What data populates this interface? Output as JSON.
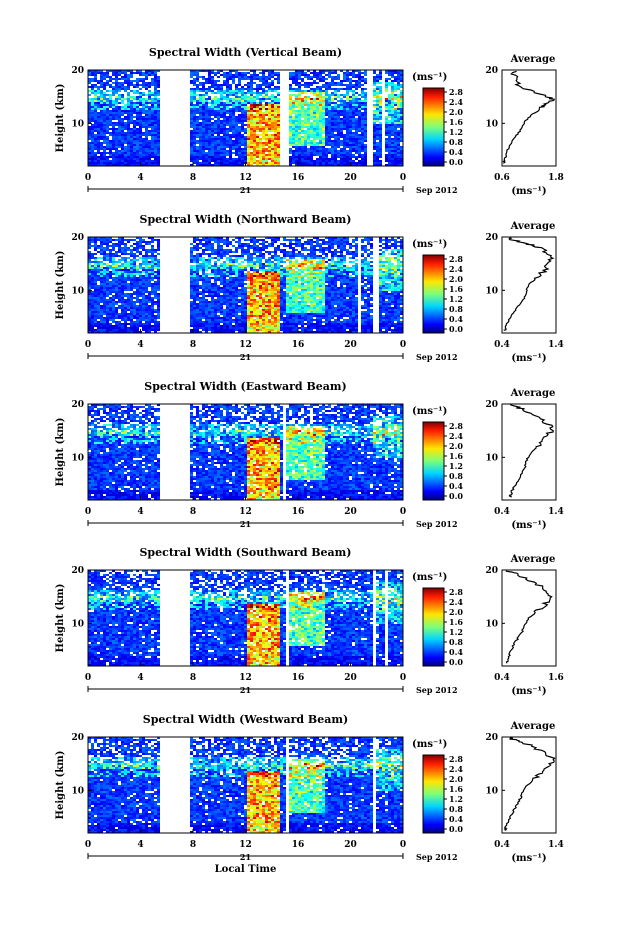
{
  "chart_data": [
    {
      "type": "heatmap",
      "title": "Spectral Width (Vertical Beam)",
      "ylabel": "Height (km)",
      "x_ticks": [
        "0",
        "4",
        "8",
        "12",
        "16",
        "20",
        "0"
      ],
      "y_ticks": [
        "20",
        "10"
      ],
      "date_day": "21",
      "date_label": "Sep 2012",
      "xlim": [
        0,
        24
      ],
      "ylim": [
        2,
        20
      ],
      "gaps": [
        [
          5.3,
          7.6
        ],
        [
          14.6,
          15.1
        ],
        [
          17.6,
          17.8
        ],
        [
          21.2,
          21.5
        ],
        [
          22.3,
          22.5
        ]
      ],
      "colorbar": {
        "unit_label": "(ms⁻¹)",
        "ticks": [
          "2.8",
          "2.4",
          "2.0",
          "1.6",
          "1.2",
          "0.8",
          "0.4",
          "0.0"
        ],
        "range": [
          0,
          2.8
        ]
      },
      "average": {
        "title": "Average",
        "xlabel": "(ms⁻¹)",
        "x_ticks": [
          "0.6",
          "1.8"
        ],
        "xlim": [
          0.6,
          1.8
        ],
        "y_ticks": [
          "20",
          "10"
        ],
        "profile": [
          [
            2.5,
            0.65
          ],
          [
            3,
            0.66
          ],
          [
            4,
            0.68
          ],
          [
            5,
            0.72
          ],
          [
            6,
            0.78
          ],
          [
            7,
            0.85
          ],
          [
            8,
            0.95
          ],
          [
            9,
            1.02
          ],
          [
            10,
            1.08
          ],
          [
            11,
            1.18
          ],
          [
            12,
            1.32
          ],
          [
            13,
            1.45
          ],
          [
            13.5,
            1.55
          ],
          [
            14,
            1.68
          ],
          [
            14.5,
            1.72
          ],
          [
            15,
            1.6
          ],
          [
            16,
            1.25
          ],
          [
            17,
            1.0
          ],
          [
            18,
            0.92
          ],
          [
            19,
            0.88
          ],
          [
            20,
            0.85
          ]
        ]
      }
    },
    {
      "type": "heatmap",
      "title": "Spectral Width (Northward Beam)",
      "ylabel": "Height (km)",
      "x_ticks": [
        "0",
        "4",
        "8",
        "12",
        "16",
        "20",
        "0"
      ],
      "y_ticks": [
        "20",
        "10"
      ],
      "date_day": "21",
      "date_label": "Sep 2012",
      "xlim": [
        0,
        24
      ],
      "ylim": [
        2,
        20
      ],
      "gaps": [
        [
          5.3,
          7.6
        ],
        [
          20.4,
          20.7
        ],
        [
          21.7,
          22.0
        ]
      ],
      "colorbar": {
        "unit_label": "(ms⁻¹)",
        "ticks": [
          "2.8",
          "2.4",
          "2.0",
          "1.6",
          "1.2",
          "0.8",
          "0.4",
          "0.0"
        ],
        "range": [
          0,
          2.8
        ]
      },
      "average": {
        "title": "Average",
        "xlabel": "(ms⁻¹)",
        "x_ticks": [
          "0.4",
          "1.4"
        ],
        "xlim": [
          0.4,
          1.4
        ],
        "y_ticks": [
          "20",
          "10"
        ],
        "profile": [
          [
            2.5,
            0.45
          ],
          [
            3,
            0.47
          ],
          [
            4,
            0.5
          ],
          [
            5,
            0.55
          ],
          [
            6,
            0.62
          ],
          [
            7,
            0.7
          ],
          [
            8,
            0.78
          ],
          [
            9,
            0.82
          ],
          [
            10,
            0.85
          ],
          [
            11,
            0.9
          ],
          [
            12,
            1.0
          ],
          [
            13,
            1.12
          ],
          [
            14,
            1.2
          ],
          [
            15,
            1.25
          ],
          [
            16,
            1.3
          ],
          [
            17,
            1.22
          ],
          [
            18,
            1.1
          ],
          [
            18.5,
            0.95
          ],
          [
            19,
            0.75
          ],
          [
            19.5,
            0.6
          ],
          [
            20,
            0.5
          ]
        ]
      }
    },
    {
      "type": "heatmap",
      "title": "Spectral Width (Eastward Beam)",
      "ylabel": "Height (km)",
      "x_ticks": [
        "0",
        "4",
        "8",
        "12",
        "16",
        "20",
        "0"
      ],
      "y_ticks": [
        "20",
        "10"
      ],
      "date_day": "21",
      "date_label": "Sep 2012",
      "xlim": [
        0,
        24
      ],
      "ylim": [
        2,
        20
      ],
      "gaps": [
        [
          5.3,
          7.6
        ],
        [
          14.8,
          15.0
        ],
        [
          21.5,
          21.7
        ]
      ],
      "colorbar": {
        "unit_label": "(ms⁻¹)",
        "ticks": [
          "2.8",
          "2.4",
          "2.0",
          "1.6",
          "1.2",
          "0.8",
          "0.4",
          "0.0"
        ],
        "range": [
          0,
          2.8
        ]
      },
      "average": {
        "title": "Average",
        "xlabel": "(ms⁻¹)",
        "x_ticks": [
          "0.4",
          "1.4"
        ],
        "xlim": [
          0.4,
          1.4
        ],
        "y_ticks": [
          "20",
          "10"
        ],
        "profile": [
          [
            2.5,
            0.55
          ],
          [
            3,
            0.56
          ],
          [
            4,
            0.6
          ],
          [
            5,
            0.65
          ],
          [
            6,
            0.72
          ],
          [
            7,
            0.78
          ],
          [
            8,
            0.82
          ],
          [
            9,
            0.85
          ],
          [
            10,
            0.88
          ],
          [
            11,
            0.95
          ],
          [
            12,
            1.05
          ],
          [
            13,
            1.15
          ],
          [
            14,
            1.25
          ],
          [
            15,
            1.3
          ],
          [
            16,
            1.28
          ],
          [
            17,
            1.15
          ],
          [
            18,
            1.0
          ],
          [
            19,
            0.8
          ],
          [
            19.5,
            0.65
          ],
          [
            20,
            0.55
          ]
        ]
      }
    },
    {
      "type": "heatmap",
      "title": "Spectral Width (Southward Beam)",
      "ylabel": "Height (km)",
      "x_ticks": [
        "0",
        "4",
        "8",
        "12",
        "16",
        "20",
        "0"
      ],
      "y_ticks": [
        "20",
        "10"
      ],
      "date_day": "21",
      "date_label": "Sep 2012",
      "xlim": [
        0,
        24
      ],
      "ylim": [
        2,
        20
      ],
      "gaps": [
        [
          5.3,
          7.6
        ],
        [
          15.0,
          15.2
        ],
        [
          21.6,
          21.8
        ],
        [
          22.6,
          22.8
        ]
      ],
      "colorbar": {
        "unit_label": "(ms⁻¹)",
        "ticks": [
          "2.8",
          "2.4",
          "2.0",
          "1.6",
          "1.2",
          "0.8",
          "0.4",
          "0.0"
        ],
        "range": [
          0,
          2.8
        ]
      },
      "average": {
        "title": "Average",
        "xlabel": "(ms⁻¹)",
        "x_ticks": [
          "0.4",
          "1.6"
        ],
        "xlim": [
          0.4,
          1.6
        ],
        "y_ticks": [
          "20",
          "10"
        ],
        "profile": [
          [
            2.5,
            0.5
          ],
          [
            3,
            0.52
          ],
          [
            4,
            0.56
          ],
          [
            5,
            0.6
          ],
          [
            6,
            0.66
          ],
          [
            7,
            0.74
          ],
          [
            8,
            0.82
          ],
          [
            9,
            0.88
          ],
          [
            10,
            0.92
          ],
          [
            11,
            1.0
          ],
          [
            12,
            1.15
          ],
          [
            13,
            1.3
          ],
          [
            14,
            1.42
          ],
          [
            15,
            1.45
          ],
          [
            16,
            1.4
          ],
          [
            17,
            1.25
          ],
          [
            18,
            1.05
          ],
          [
            19,
            0.8
          ],
          [
            19.5,
            0.62
          ],
          [
            20,
            0.5
          ]
        ]
      }
    },
    {
      "type": "heatmap",
      "title": "Spectral Width (Westward Beam)",
      "ylabel": "Height (km)",
      "x_ticks": [
        "0",
        "4",
        "8",
        "12",
        "16",
        "20",
        "0"
      ],
      "y_ticks": [
        "20",
        "10"
      ],
      "date_day": "21",
      "date_label": "Sep 2012",
      "xlabel": "Local Time",
      "xlim": [
        0,
        24
      ],
      "ylim": [
        2,
        20
      ],
      "gaps": [
        [
          5.3,
          7.6
        ],
        [
          14.9,
          15.1
        ],
        [
          21.6,
          21.8
        ]
      ],
      "colorbar": {
        "unit_label": "(ms⁻¹)",
        "ticks": [
          "2.8",
          "2.4",
          "2.0",
          "1.6",
          "1.2",
          "0.8",
          "0.4",
          "0.0"
        ],
        "range": [
          0,
          2.8
        ]
      },
      "average": {
        "title": "Average",
        "xlabel": "(ms⁻¹)",
        "x_ticks": [
          "0.4",
          "1.4"
        ],
        "xlim": [
          0.4,
          1.4
        ],
        "y_ticks": [
          "20",
          "10"
        ],
        "profile": [
          [
            2.5,
            0.45
          ],
          [
            3,
            0.47
          ],
          [
            4,
            0.5
          ],
          [
            5,
            0.55
          ],
          [
            6,
            0.6
          ],
          [
            7,
            0.66
          ],
          [
            8,
            0.72
          ],
          [
            9,
            0.76
          ],
          [
            10,
            0.8
          ],
          [
            11,
            0.88
          ],
          [
            12,
            0.98
          ],
          [
            13,
            1.1
          ],
          [
            14,
            1.22
          ],
          [
            15,
            1.3
          ],
          [
            16,
            1.32
          ],
          [
            17,
            1.2
          ],
          [
            18,
            1.0
          ],
          [
            19,
            0.8
          ],
          [
            19.5,
            0.62
          ],
          [
            20,
            0.5
          ]
        ]
      }
    }
  ]
}
